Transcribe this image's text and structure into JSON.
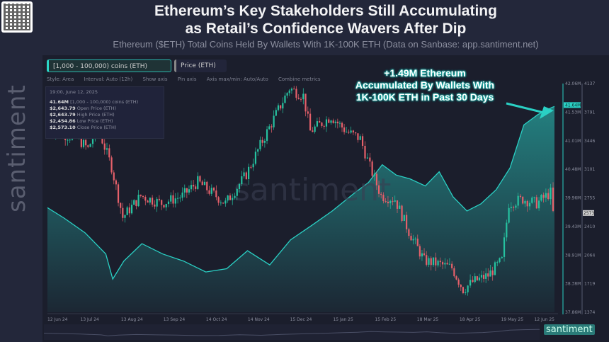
{
  "title_line1": "Ethereum’s Key Stakeholders Still Accumulating",
  "title_line2": "as Retail’s Confidence Wavers After Dip",
  "subtitle": "Ethereum ($ETH) Total Coins Held By Wallets With 1K-100K ETH (Data on Sanbase: app.santiment.net)",
  "watermark": "santiment",
  "chips": {
    "metric1": "[1,000 - 100,000) coins (ETH)",
    "metric2": "Price (ETH)"
  },
  "toolbar": {
    "style": "Style: Area",
    "interval": "Interval: Auto (12h)",
    "show_axis": "Show axis",
    "pin_axis": "Pin axis",
    "axis_minmax": "Axis max/min: Auto/Auto",
    "combine": "Combine metrics"
  },
  "tooltip": {
    "date": "19:00, June 12, 2025",
    "rows": [
      {
        "value": "41.64M",
        "label": "[1,000 - 100,000) coins (ETH)"
      },
      {
        "value": "$2,643.79",
        "label": "Open Price (ETH)"
      },
      {
        "value": "$2,643.79",
        "label": "High Price (ETH)"
      },
      {
        "value": "$2,454.86",
        "label": "Low Price (ETH)"
      },
      {
        "value": "$2,573.10",
        "label": "Close Price (ETH)"
      }
    ]
  },
  "annotation": [
    "+1.49M Ethereum",
    "Accumulated By Wallets With",
    "1K-100K ETH in Past 30 Days"
  ],
  "colors": {
    "holdings": "#2ad0c4",
    "up": "#26c2a0",
    "down": "#e5606a",
    "background": "#1b1e2c"
  },
  "chart_data": {
    "type": "line+candlestick",
    "x_ticks": [
      "12 Jun 24",
      "13 Jul 24",
      "13 Aug 24",
      "13 Sep 24",
      "14 Oct 24",
      "14 Nov 24",
      "15 Dec 24",
      "15 Jan 25",
      "15 Feb 25",
      "18 Mar 25",
      "18 Apr 25",
      "19 May 25",
      "12 Jun 25"
    ],
    "xlim": [
      "2024-06-12",
      "2025-06-12"
    ],
    "y_left_ticks": [
      "42.06M",
      "41.53M",
      "41.01M",
      "40.48M",
      "39.96M",
      "39.43M",
      "38.91M",
      "38.38M",
      "37.86M"
    ],
    "y_left_lim": [
      37.86,
      42.06
    ],
    "y_left_current": "41.64M",
    "y_right_ticks": [
      "4137",
      "3791",
      "3446",
      "3101",
      "2755",
      "2410",
      "2064",
      "1719",
      "1374"
    ],
    "y_right_lim": [
      1374,
      4137
    ],
    "y_right_current": "2573",
    "series": [
      {
        "name": "[1,000 - 100,000) coins (ETH)",
        "type": "area",
        "unit": "M ETH",
        "points": [
          [
            "2024-06-12",
            39.78
          ],
          [
            "2024-06-24",
            39.59
          ],
          [
            "2024-07-09",
            39.32
          ],
          [
            "2024-07-24",
            38.93
          ],
          [
            "2024-07-29",
            38.47
          ],
          [
            "2024-08-06",
            38.8
          ],
          [
            "2024-08-19",
            39.12
          ],
          [
            "2024-09-03",
            38.93
          ],
          [
            "2024-09-18",
            38.8
          ],
          [
            "2024-10-04",
            38.6
          ],
          [
            "2024-10-19",
            38.66
          ],
          [
            "2024-11-03",
            38.99
          ],
          [
            "2024-11-19",
            38.73
          ],
          [
            "2024-12-04",
            39.19
          ],
          [
            "2024-12-19",
            39.45
          ],
          [
            "2025-01-03",
            39.72
          ],
          [
            "2025-01-19",
            40.05
          ],
          [
            "2025-01-29",
            40.24
          ],
          [
            "2025-02-08",
            40.57
          ],
          [
            "2025-02-18",
            40.38
          ],
          [
            "2025-02-28",
            40.31
          ],
          [
            "2025-03-11",
            40.18
          ],
          [
            "2025-03-21",
            40.44
          ],
          [
            "2025-03-31",
            39.98
          ],
          [
            "2025-04-10",
            39.72
          ],
          [
            "2025-04-20",
            39.85
          ],
          [
            "2025-05-01",
            40.11
          ],
          [
            "2025-05-11",
            40.51
          ],
          [
            "2025-05-21",
            41.3
          ],
          [
            "2025-05-31",
            41.49
          ],
          [
            "2025-06-10",
            41.62
          ],
          [
            "2025-06-12",
            41.64
          ]
        ]
      },
      {
        "name": "Price (ETH)",
        "type": "candlestick",
        "unit": "USD",
        "points": [
          [
            "2024-06-12",
            3610
          ],
          [
            "2024-06-24",
            3525
          ],
          [
            "2024-07-04",
            3480
          ],
          [
            "2024-07-12",
            3350
          ],
          [
            "2024-07-19",
            3610
          ],
          [
            "2024-07-29",
            3130
          ],
          [
            "2024-08-06",
            2520
          ],
          [
            "2024-08-19",
            2780
          ],
          [
            "2024-09-03",
            2690
          ],
          [
            "2024-09-18",
            2780
          ],
          [
            "2024-09-29",
            2950
          ],
          [
            "2024-10-19",
            2690
          ],
          [
            "2024-11-03",
            3040
          ],
          [
            "2024-11-13",
            3390
          ],
          [
            "2024-11-26",
            3820
          ],
          [
            "2024-12-04",
            4080
          ],
          [
            "2024-12-14",
            3990
          ],
          [
            "2024-12-19",
            3560
          ],
          [
            "2025-01-03",
            3740
          ],
          [
            "2025-01-14",
            3560
          ],
          [
            "2025-01-24",
            3470
          ],
          [
            "2025-01-31",
            3130
          ],
          [
            "2025-02-08",
            2780
          ],
          [
            "2025-02-18",
            2740
          ],
          [
            "2025-02-28",
            2350
          ],
          [
            "2025-03-11",
            2000
          ],
          [
            "2025-03-21",
            1960
          ],
          [
            "2025-03-31",
            1910
          ],
          [
            "2025-04-08",
            1650
          ],
          [
            "2025-04-15",
            1740
          ],
          [
            "2025-04-26",
            1820
          ],
          [
            "2025-05-06",
            2000
          ],
          [
            "2025-05-11",
            2690
          ],
          [
            "2025-05-21",
            2740
          ],
          [
            "2025-05-31",
            2690
          ],
          [
            "2025-06-10",
            2820
          ],
          [
            "2025-06-12",
            2573
          ]
        ]
      }
    ]
  }
}
